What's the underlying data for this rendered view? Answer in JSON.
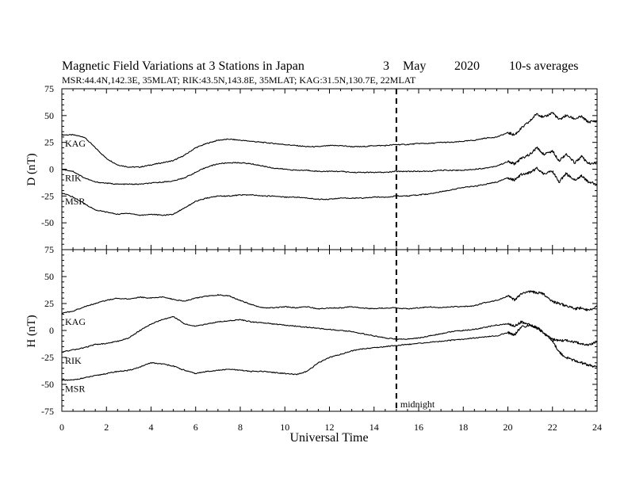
{
  "chart_data": {
    "type": "line",
    "title": "Magnetic Field Variations at 3 Stations in Japan",
    "date": {
      "day": "3",
      "month": "May",
      "year": "2020"
    },
    "averaging": "10-s averages",
    "subtitle": "MSR:44.4N,142.3E, 35MLAT;  RIK:43.5N,143.8E, 35MLAT;  KAG:31.5N,130.7E, 22MLAT",
    "xlabel": "Universal Time",
    "xlim": [
      0,
      24
    ],
    "xticks": [
      "0",
      "2",
      "4",
      "6",
      "8",
      "10",
      "12",
      "14",
      "16",
      "18",
      "20",
      "22",
      "24"
    ],
    "vline": {
      "x": 15,
      "label": "midnight",
      "style": "dashed"
    },
    "panels": [
      {
        "ylabel": "D (nT)",
        "ylim": [
          -75,
          75
        ],
        "yticks": [
          "75",
          "50",
          "25",
          "0",
          "-25",
          "-50",
          "-75"
        ],
        "series": [
          {
            "name": "KAG",
            "x": [
              0,
              0.5,
              1,
              1.5,
              2,
              2.5,
              3,
              3.5,
              4,
              4.5,
              5,
              5.5,
              6,
              6.5,
              7,
              7.5,
              8,
              8.5,
              9,
              9.5,
              10,
              10.5,
              11,
              11.5,
              12,
              12.5,
              13,
              13.5,
              14,
              14.5,
              15,
              15.5,
              16,
              16.5,
              17,
              17.5,
              18,
              18.5,
              19,
              19.5,
              20,
              20.3,
              20.6,
              21,
              21.3,
              21.6,
              22,
              22.3,
              22.6,
              23,
              23.3,
              23.6,
              24
            ],
            "values": [
              32,
              32,
              30,
              20,
              10,
              4,
              2,
              2,
              4,
              6,
              8,
              13,
              20,
              24,
              27,
              28,
              27,
              26,
              25,
              24,
              23,
              22,
              21,
              21,
              22,
              22,
              21,
              21,
              22,
              22,
              23,
              23,
              24,
              24,
              25,
              25,
              26,
              27,
              29,
              30,
              34,
              32,
              38,
              45,
              52,
              48,
              53,
              46,
              50,
              47,
              49,
              44,
              45
            ]
          },
          {
            "name": "RIK",
            "x": [
              0,
              0.5,
              1,
              1.5,
              2,
              2.5,
              3,
              3.5,
              4,
              4.5,
              5,
              5.5,
              6,
              6.5,
              7,
              7.5,
              8,
              8.5,
              9,
              9.5,
              10,
              10.5,
              11,
              11.5,
              12,
              12.5,
              13,
              13.5,
              14,
              14.5,
              15,
              15.5,
              16,
              16.5,
              17,
              17.5,
              18,
              18.5,
              19,
              19.5,
              20,
              20.3,
              20.6,
              21,
              21.3,
              21.6,
              22,
              22.3,
              22.6,
              23,
              23.3,
              23.6,
              24
            ],
            "values": [
              0,
              -2,
              -8,
              -12,
              -13,
              -14,
              -14,
              -14,
              -13,
              -12,
              -11,
              -8,
              -3,
              2,
              5,
              6,
              6,
              5,
              3,
              1,
              0,
              -1,
              -1,
              -2,
              -2,
              -2,
              -3,
              -3,
              -3,
              -3,
              -2,
              -2,
              -2,
              -2,
              -1,
              -1,
              -1,
              0,
              1,
              3,
              7,
              5,
              10,
              14,
              20,
              14,
              17,
              8,
              14,
              6,
              12,
              5,
              6
            ]
          },
          {
            "name": "MSR",
            "x": [
              0,
              0.5,
              1,
              1.5,
              2,
              2.5,
              3,
              3.5,
              4,
              4.5,
              5,
              5.5,
              6,
              6.5,
              7,
              7.5,
              8,
              8.5,
              9,
              9.5,
              10,
              10.5,
              11,
              11.5,
              12,
              12.5,
              13,
              13.5,
              14,
              14.5,
              15,
              15.5,
              16,
              16.5,
              17,
              17.5,
              18,
              18.5,
              19,
              19.5,
              20,
              20.3,
              20.6,
              21,
              21.3,
              21.6,
              22,
              22.3,
              22.6,
              23,
              23.3,
              23.6,
              24
            ],
            "values": [
              -22,
              -26,
              -32,
              -38,
              -40,
              -42,
              -41,
              -43,
              -42,
              -43,
              -42,
              -36,
              -30,
              -27,
              -25,
              -25,
              -24,
              -24,
              -25,
              -25,
              -26,
              -26,
              -27,
              -28,
              -28,
              -27,
              -27,
              -27,
              -26,
              -26,
              -25,
              -25,
              -24,
              -23,
              -21,
              -19,
              -17,
              -16,
              -14,
              -12,
              -8,
              -10,
              -5,
              -3,
              1,
              -4,
              -2,
              -12,
              -4,
              -10,
              -6,
              -12,
              -14
            ]
          }
        ]
      },
      {
        "ylabel": "H (nT)",
        "ylim": [
          -75,
          75
        ],
        "yticks": [
          "75",
          "50",
          "25",
          "0",
          "-25",
          "-50",
          "-75"
        ],
        "series": [
          {
            "name": "KAG",
            "x": [
              0,
              0.5,
              1,
              1.5,
              2,
              2.5,
              3,
              3.5,
              4,
              4.5,
              5,
              5.5,
              6,
              6.5,
              7,
              7.5,
              8,
              8.5,
              9,
              9.5,
              10,
              10.5,
              11,
              11.5,
              12,
              12.5,
              13,
              13.5,
              14,
              14.5,
              15,
              15.5,
              16,
              16.5,
              17,
              17.5,
              18,
              18.5,
              19,
              19.5,
              20,
              20.3,
              20.6,
              21,
              21.3,
              21.6,
              22,
              22.3,
              22.6,
              23,
              23.3,
              23.6,
              24
            ],
            "values": [
              16,
              18,
              22,
              25,
              28,
              30,
              29,
              31,
              30,
              31,
              29,
              27,
              30,
              32,
              33,
              32,
              28,
              24,
              21,
              21,
              22,
              21,
              22,
              20,
              21,
              21,
              22,
              21,
              20,
              21,
              21,
              20,
              21,
              22,
              21,
              22,
              22,
              23,
              26,
              28,
              32,
              28,
              34,
              36,
              35,
              34,
              27,
              25,
              23,
              20,
              21,
              19,
              22
            ]
          },
          {
            "name": "RIK",
            "x": [
              0,
              0.5,
              1,
              1.5,
              2,
              2.5,
              3,
              3.5,
              4,
              4.5,
              5,
              5.5,
              6,
              6.5,
              7,
              7.5,
              8,
              8.5,
              9,
              9.5,
              10,
              10.5,
              11,
              11.5,
              12,
              12.5,
              13,
              13.5,
              14,
              14.5,
              15,
              15.5,
              16,
              16.5,
              17,
              17.5,
              18,
              18.5,
              19,
              19.5,
              20,
              20.3,
              20.6,
              21,
              21.3,
              21.6,
              22,
              22.3,
              22.6,
              23,
              23.3,
              23.6,
              24
            ],
            "values": [
              -20,
              -18,
              -16,
              -13,
              -12,
              -10,
              -7,
              0,
              6,
              10,
              13,
              6,
              4,
              6,
              8,
              9,
              10,
              8,
              7,
              6,
              5,
              4,
              3,
              2,
              1,
              0,
              -1,
              -3,
              -5,
              -7,
              -8,
              -8,
              -7,
              -5,
              -3,
              -1,
              0,
              1,
              3,
              5,
              6,
              4,
              8,
              5,
              2,
              -2,
              -8,
              -10,
              -9,
              -11,
              -12,
              -14,
              -10
            ]
          },
          {
            "name": "MSR",
            "x": [
              0,
              0.5,
              1,
              1.5,
              2,
              2.5,
              3,
              3.5,
              4,
              4.5,
              5,
              5.5,
              6,
              6.5,
              7,
              7.5,
              8,
              8.5,
              9,
              9.5,
              10,
              10.5,
              11,
              11.5,
              12,
              12.5,
              13,
              13.5,
              14,
              14.5,
              15,
              15.5,
              16,
              16.5,
              17,
              17.5,
              18,
              18.5,
              19,
              19.5,
              20,
              20.3,
              20.6,
              21,
              21.3,
              21.6,
              22,
              22.3,
              22.6,
              23,
              23.3,
              23.6,
              24
            ],
            "values": [
              -46,
              -46,
              -44,
              -42,
              -40,
              -38,
              -37,
              -34,
              -30,
              -31,
              -33,
              -37,
              -40,
              -38,
              -37,
              -36,
              -37,
              -38,
              -38,
              -39,
              -40,
              -41,
              -38,
              -30,
              -25,
              -22,
              -19,
              -17,
              -16,
              -15,
              -14,
              -13,
              -12,
              -11,
              -10,
              -9,
              -8,
              -7,
              -6,
              -5,
              -2,
              -4,
              3,
              5,
              3,
              -2,
              -10,
              -20,
              -25,
              -28,
              -30,
              -32,
              -34
            ]
          }
        ]
      }
    ]
  }
}
